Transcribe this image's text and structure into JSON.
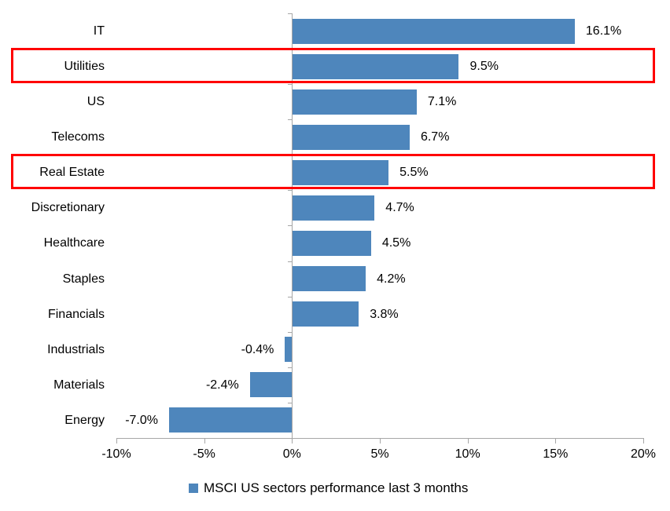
{
  "chart_data": {
    "type": "bar",
    "orientation": "horizontal",
    "title": "",
    "categories": [
      "IT",
      "Utilities",
      "US",
      "Telecoms",
      "Real Estate",
      "Discretionary",
      "Healthcare",
      "Staples",
      "Financials",
      "Industrials",
      "Materials",
      "Energy"
    ],
    "values": [
      16.1,
      9.5,
      7.1,
      6.7,
      5.5,
      4.7,
      4.5,
      4.2,
      3.8,
      -0.4,
      -2.4,
      -7.0
    ],
    "value_labels": [
      "16.1%",
      "9.5%",
      "7.1%",
      "6.7%",
      "5.5%",
      "4.7%",
      "4.5%",
      "4.2%",
      "3.8%",
      "-0.4%",
      "-2.4%",
      "-7.0%"
    ],
    "x_ticks": [
      "-10%",
      "-5%",
      "0%",
      "5%",
      "10%",
      "15%",
      "20%"
    ],
    "x_range": [
      -10,
      20
    ],
    "grid": false,
    "legend": "MSCI US sectors performance last 3 months",
    "legend_position": "bottom",
    "highlighted_categories": [
      "Utilities",
      "Real Estate"
    ],
    "colors": {
      "bar": "#4E86BC",
      "highlight_border": "#FF0000",
      "axis": "#A6A6A6",
      "text": "#000000"
    }
  }
}
